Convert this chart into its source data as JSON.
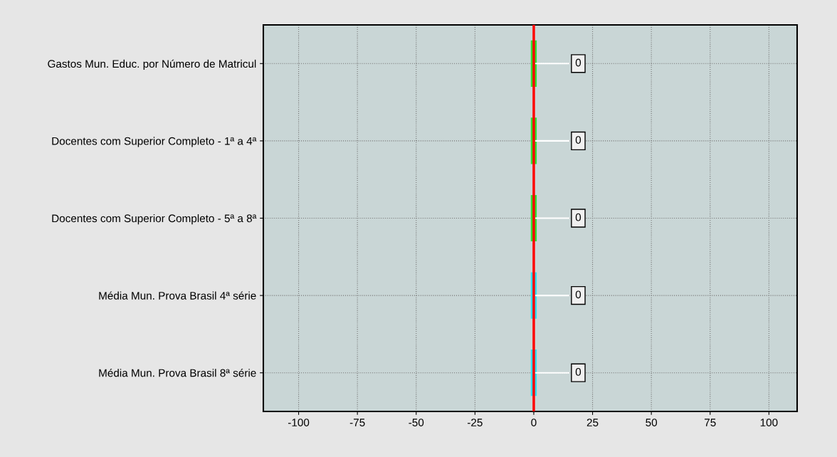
{
  "chart_data": {
    "type": "bar",
    "orientation": "horizontal",
    "categories": [
      "Gastos Mun. Educ. por Número de Matricul",
      "Docentes com Superior Completo - 1ª a 4ª",
      "Docentes com Superior Completo - 5ª a 8ª",
      "Média Mun. Prova Brasil 4ª série",
      "Média Mun. Prova Brasil 8ª série"
    ],
    "values": [
      0,
      0,
      0,
      0,
      0
    ],
    "colors": [
      "#33dd33",
      "#33dd33",
      "#33dd33",
      "#33ddee",
      "#33ddee"
    ],
    "data_labels": true,
    "xlim": [
      -115,
      112
    ],
    "xticks": [
      -100,
      -75,
      -50,
      -25,
      0,
      25,
      50,
      75,
      100
    ],
    "ref_lines": [
      {
        "axis": "x",
        "value": 0,
        "color": "#ff0000"
      }
    ],
    "grid": true
  }
}
